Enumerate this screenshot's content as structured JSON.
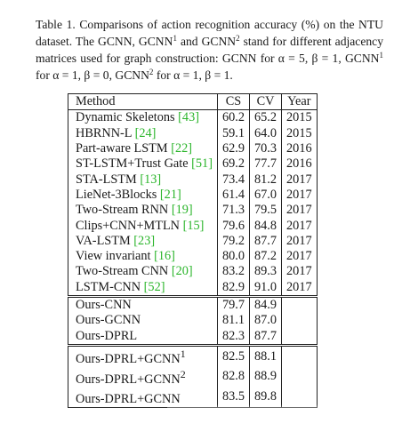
{
  "caption": {
    "lead": "Table 1. Comparisons of action recognition accuracy (%) on the NTU dataset. The GCNN, GCNN",
    "sup1": "1",
    "mid1": " and GCNN",
    "sup2": "2",
    "mid2": " stand for different adjacency matrices used for graph construction: GCNN for α = 5, β = 1, GCNN",
    "sup3": "1",
    "mid3": " for α = 1, β = 0, GCNN",
    "sup4": "2",
    "tail": " for α = 1, β = 1."
  },
  "table": {
    "headers": {
      "method": "Method",
      "cs": "CS",
      "cv": "CV",
      "year": "Year"
    },
    "baselines": [
      {
        "name": "Dynamic Skeletons ",
        "cite": "[43]",
        "cs": "60.2",
        "cv": "65.2",
        "year": "2015"
      },
      {
        "name": "HBRNN-L ",
        "cite": "[24]",
        "cs": "59.1",
        "cv": "64.0",
        "year": "2015"
      },
      {
        "name": "Part-aware LSTM ",
        "cite": "[22]",
        "cs": "62.9",
        "cv": "70.3",
        "year": "2016"
      },
      {
        "name": "ST-LSTM+Trust Gate ",
        "cite": "[51]",
        "cs": "69.2",
        "cv": "77.7",
        "year": "2016"
      },
      {
        "name": "STA-LSTM ",
        "cite": "[13]",
        "cs": "73.4",
        "cv": "81.2",
        "year": "2017"
      },
      {
        "name": "LieNet-3Blocks ",
        "cite": "[21]",
        "cs": "61.4",
        "cv": "67.0",
        "year": "2017"
      },
      {
        "name": "Two-Stream RNN ",
        "cite": "[19]",
        "cs": "71.3",
        "cv": "79.5",
        "year": "2017"
      },
      {
        "name": "Clips+CNN+MTLN ",
        "cite": "[15]",
        "cs": "79.6",
        "cv": "84.8",
        "year": "2017"
      },
      {
        "name": "VA-LSTM ",
        "cite": "[23]",
        "cs": "79.2",
        "cv": "87.7",
        "year": "2017"
      },
      {
        "name": "View invariant ",
        "cite": "[16]",
        "cs": "80.0",
        "cv": "87.2",
        "year": "2017"
      },
      {
        "name": "Two-Stream CNN ",
        "cite": "[20]",
        "cs": "83.2",
        "cv": "89.3",
        "year": "2017"
      },
      {
        "name": "LSTM-CNN ",
        "cite": "[52]",
        "cs": "82.9",
        "cv": "91.0",
        "year": "2017"
      }
    ],
    "ours": [
      {
        "name": "Ours-CNN",
        "cs": "79.7",
        "cv": "84.9"
      },
      {
        "name": "Ours-GCNN",
        "cs": "81.1",
        "cv": "87.0"
      },
      {
        "name": "Ours-DPRL",
        "cs": "82.3",
        "cv": "87.7"
      }
    ],
    "ours_graph": [
      {
        "name": "Ours-DPRL+GCNN",
        "sup": "1",
        "cs": "82.5",
        "cv": "88.1"
      },
      {
        "name": "Ours-DPRL+GCNN",
        "sup": "2",
        "cs": "82.8",
        "cv": "88.9"
      },
      {
        "name": "Ours-DPRL+GCNN",
        "sup": "",
        "cs": "83.5",
        "cv": "89.8"
      }
    ]
  }
}
